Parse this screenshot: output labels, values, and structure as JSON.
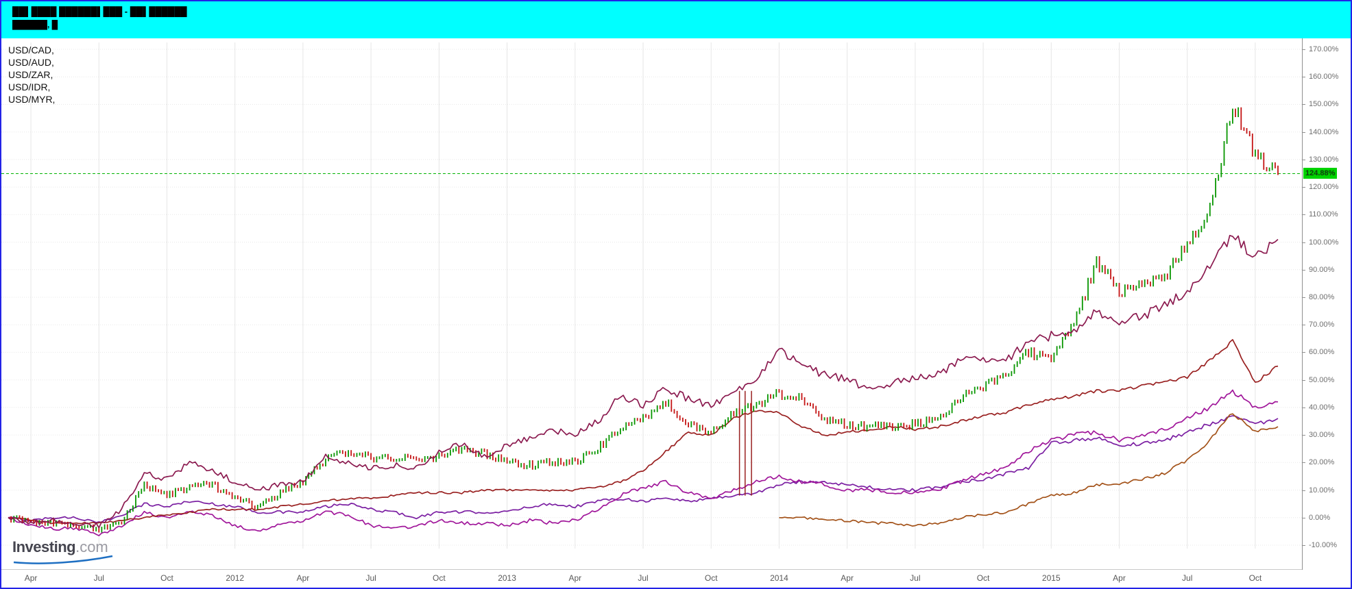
{
  "header": {
    "title_line1": "██▌████ ██████▌███ - ██▌██████",
    "title_line2": "██████, █",
    "background_color": "#00ffff"
  },
  "legend": {
    "items": [
      "USD/CAD,",
      "USD/AUD,",
      "USD/ZAR,",
      "USD/IDR,",
      "USD/MYR,"
    ]
  },
  "watermark": {
    "brand": "Investing",
    "tld": ".com"
  },
  "last_value": {
    "label": "124.88%",
    "value": 124.88,
    "badge_color": "#00d300",
    "line_color": "#00b300"
  },
  "chart_data": {
    "type": "line",
    "title": "",
    "x_start": "2011-03",
    "x_end": "2015-11",
    "x_unit": "month",
    "x_tick_labels": [
      "Apr",
      "Jul",
      "Oct",
      "2012",
      "Apr",
      "Jul",
      "Oct",
      "2013",
      "Apr",
      "Jul",
      "Oct",
      "2014",
      "Apr",
      "Jul",
      "Oct",
      "2015",
      "Apr",
      "Jul",
      "Oct"
    ],
    "x_tick_month_index": [
      1,
      4,
      7,
      10,
      13,
      16,
      19,
      22,
      25,
      28,
      31,
      34,
      37,
      40,
      43,
      46,
      49,
      52,
      55
    ],
    "y_axis": {
      "min": -10,
      "max": 170,
      "step": 10,
      "format": "percent",
      "side": "right"
    },
    "y_tick_labels": [
      "-10.00%",
      "0.00%",
      "10.00%",
      "20.00%",
      "30.00%",
      "40.00%",
      "50.00%",
      "60.00%",
      "70.00%",
      "80.00%",
      "90.00%",
      "100.00%",
      "110.00%",
      "120.00%",
      "130.00%",
      "140.00%",
      "150.00%",
      "160.00%",
      "170.00%"
    ],
    "grid": true,
    "legend_position": "top-left",
    "last_price_line": {
      "value": 124.88,
      "style": "dotted"
    },
    "series": [
      {
        "name": "USD/CAD",
        "style": "line",
        "color": "#7b1fa2",
        "noise": 1.0,
        "monthly_pct_change": [
          0,
          -1,
          0,
          0,
          -2,
          1,
          5,
          4,
          6,
          5,
          4,
          2,
          2,
          2,
          4,
          5,
          3,
          2,
          0,
          2,
          2,
          2,
          2,
          4,
          5,
          4,
          6,
          7,
          6,
          7,
          6,
          7,
          8,
          9,
          12,
          13,
          13,
          12,
          11,
          10,
          10,
          11,
          13,
          14,
          16,
          18,
          27,
          28,
          29,
          26,
          27,
          28,
          31,
          34,
          37,
          34,
          36
        ]
      },
      {
        "name": "USD/AUD",
        "style": "line",
        "color": "#a0169a",
        "noise": 1.2,
        "monthly_pct_change": [
          0,
          -3,
          -4,
          -4,
          -6,
          -3,
          2,
          0,
          2,
          1,
          -3,
          -5,
          -2,
          -1,
          2,
          1,
          -3,
          -4,
          -3,
          -1,
          -2,
          -2,
          -3,
          -1,
          -2,
          -1,
          3,
          8,
          11,
          13,
          9,
          7,
          10,
          13,
          15,
          13,
          12,
          10,
          10,
          9,
          9,
          10,
          13,
          16,
          18,
          24,
          28,
          30,
          31,
          28,
          30,
          32,
          36,
          40,
          46,
          40,
          42
        ]
      },
      {
        "name": "USD/MYR",
        "style": "line",
        "color": "#a35219",
        "noise": 0.9,
        "monthly_pct_change": [
          null,
          null,
          null,
          null,
          null,
          null,
          null,
          null,
          null,
          null,
          null,
          null,
          null,
          null,
          null,
          null,
          null,
          null,
          null,
          null,
          null,
          null,
          null,
          null,
          null,
          null,
          null,
          null,
          null,
          null,
          null,
          null,
          null,
          null,
          0,
          0,
          -1,
          -1,
          -2,
          -2,
          -3,
          -2,
          0,
          1,
          2,
          5,
          8,
          9,
          12,
          12,
          14,
          16,
          21,
          28,
          38,
          31,
          33
        ]
      },
      {
        "name": "USD/IDR",
        "style": "line",
        "color": "#992020",
        "noise": 0.7,
        "monthly_pct_change": [
          0,
          -1,
          -2,
          -2,
          -2,
          -1,
          0,
          1,
          2,
          3,
          3,
          3,
          4,
          5,
          6,
          7,
          7,
          8,
          9,
          9,
          9,
          10,
          10,
          10,
          10,
          10,
          11,
          13,
          17,
          24,
          31,
          30,
          36,
          39,
          38,
          33,
          30,
          31,
          32,
          33,
          32,
          33,
          35,
          37,
          38,
          41,
          43,
          44,
          46,
          46,
          48,
          49,
          51,
          57,
          64,
          49,
          55
        ],
        "glitch_vlines": {
          "month_positions": [
            32.25,
            32.5,
            32.78
          ],
          "top_value": 46,
          "bottom_value": 8
        }
      },
      {
        "name": "unlabeled-main-ohlc",
        "style": "ohlc",
        "color_up": "#089600",
        "color_down": "#c41414",
        "noise": 2.2,
        "monthly_pct_change": [
          0,
          -2,
          -2,
          -3,
          -4,
          -2,
          12,
          8,
          11,
          12,
          7,
          4,
          9,
          13,
          21,
          24,
          22,
          21,
          22,
          22,
          25,
          23,
          20,
          19,
          20,
          20,
          25,
          33,
          36,
          42,
          34,
          31,
          38,
          41,
          45,
          43,
          36,
          34,
          33,
          33,
          34,
          36,
          44,
          47,
          52,
          60,
          57,
          70,
          93,
          82,
          85,
          87,
          100,
          112,
          150,
          132,
          124.88
        ]
      },
      {
        "name": "USD/ZAR",
        "style": "line",
        "color": "#8b1a4f",
        "noise": 1.8,
        "monthly_pct_change": [
          0,
          -2,
          -1,
          -2,
          -3,
          3,
          16,
          14,
          20,
          17,
          13,
          10,
          12,
          13,
          22,
          20,
          18,
          19,
          18,
          24,
          27,
          22,
          26,
          29,
          32,
          30,
          35,
          44,
          41,
          47,
          43,
          41,
          45,
          50,
          61,
          55,
          52,
          50,
          47,
          49,
          51,
          52,
          57,
          57,
          57,
          64,
          66,
          67,
          75,
          71,
          73,
          77,
          82,
          92,
          103,
          94,
          101
        ]
      }
    ]
  }
}
